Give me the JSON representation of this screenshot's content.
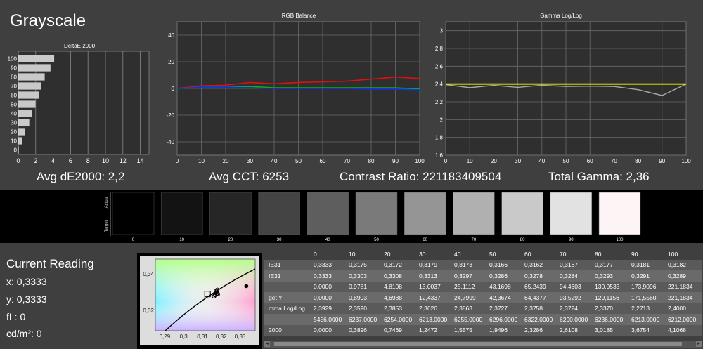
{
  "page_title": "Grayscale",
  "stats": {
    "avg_de": "Avg dE2000: 2,2",
    "avg_cct": "Avg CCT: 6253",
    "contrast": "Contrast Ratio: 221183409504",
    "gamma": "Total Gamma: 2,36"
  },
  "reading": {
    "title": "Current Reading",
    "x": "x: 0,3333",
    "y": "y: 0,3333",
    "fl": "fL: 0",
    "cdm2": "cd/m²: 0"
  },
  "swatch_labels": {
    "actual": "Actual",
    "target": "Target"
  },
  "swatches": [
    {
      "label": "0",
      "color": "#000000"
    },
    {
      "label": "10",
      "color": "#131313"
    },
    {
      "label": "20",
      "color": "#262626"
    },
    {
      "label": "30",
      "color": "#444444"
    },
    {
      "label": "40",
      "color": "#5e5e5e"
    },
    {
      "label": "50",
      "color": "#7a7a7a"
    },
    {
      "label": "60",
      "color": "#959595"
    },
    {
      "label": "70",
      "color": "#b0b0b0"
    },
    {
      "label": "80",
      "color": "#c9c9c9"
    },
    {
      "label": "90",
      "color": "#e2e2e2"
    },
    {
      "label": "100",
      "color": "#fdf5f5"
    }
  ],
  "table": {
    "header": [
      "",
      "0",
      "10",
      "20",
      "30",
      "40",
      "50",
      "60",
      "70",
      "80",
      "90",
      "100"
    ],
    "rows": [
      [
        "IE31",
        "0,3333",
        "0,3175",
        "0,3172",
        "0,3179",
        "0,3173",
        "0,3166",
        "0,3162",
        "0,3167",
        "0,3177",
        "0,3181",
        "0,3182"
      ],
      [
        "IE31",
        "0,3333",
        "0,3303",
        "0,3308",
        "0,3313",
        "0,3297",
        "0,3286",
        "0,3278",
        "0,3284",
        "0,3293",
        "0,3291",
        "0,3289"
      ],
      [
        "",
        "0,0000",
        "0,9781",
        "4,8108",
        "13,0037",
        "25,1112",
        "43,1698",
        "65,2439",
        "94,4603",
        "130,9533",
        "173,9096",
        "221,1834"
      ],
      [
        "get Y",
        "0,0000",
        "0,8903",
        "4,6988",
        "12,4337",
        "24,7999",
        "42,3674",
        "64,4377",
        "93,5292",
        "129,1156",
        "171,5560",
        "221,1834"
      ],
      [
        "mma Log/Log",
        "2,3929",
        "2,3590",
        "2,3853",
        "2,3626",
        "2,3863",
        "2,3727",
        "2,3758",
        "2,3724",
        "2,3370",
        "2,2713",
        "2,4000"
      ],
      [
        "",
        "5456,0000",
        "6237,0000",
        "6254,0000",
        "6213,0000",
        "6255,0000",
        "6296,0000",
        "6322,0000",
        "6290,0000",
        "6236,0000",
        "6213,0000",
        "6212,0000"
      ],
      [
        "2000",
        "0,0000",
        "0,3896",
        "0,7469",
        "1,2472",
        "1,5575",
        "1,9496",
        "2,3286",
        "2,6108",
        "3,0185",
        "3,6754",
        "4,1068"
      ]
    ]
  },
  "chart_data": [
    {
      "type": "bar",
      "title": "DeltaE 2000",
      "categories": [
        "0",
        "10",
        "20",
        "30",
        "40",
        "50",
        "60",
        "70",
        "80",
        "90",
        "100"
      ],
      "values": [
        0.0,
        0.3896,
        0.7469,
        1.2472,
        1.5575,
        1.9496,
        2.3286,
        2.6108,
        3.0185,
        3.6754,
        4.1068
      ],
      "xlim": [
        0,
        15
      ],
      "xticks": [
        "0",
        "2",
        "4",
        "6",
        "8",
        "10",
        "12",
        "14"
      ],
      "orientation": "horizontal"
    },
    {
      "type": "line",
      "title": "RGB Balance",
      "x": [
        0,
        10,
        20,
        30,
        40,
        50,
        60,
        70,
        80,
        90,
        100
      ],
      "xticks": [
        "0",
        "10",
        "20",
        "30",
        "40",
        "50",
        "60",
        "70",
        "80",
        "90",
        "100"
      ],
      "yticks": [
        "40",
        "20",
        "0",
        "-20",
        "-40"
      ],
      "ylim": [
        -50,
        50
      ],
      "series": [
        {
          "color": "#e01010",
          "values": [
            0,
            2,
            2.5,
            4.5,
            3.5,
            4.5,
            5,
            5.5,
            7,
            8.5,
            7.5
          ]
        },
        {
          "color": "#10b010",
          "values": [
            0,
            1,
            1,
            1.5,
            0.5,
            0.5,
            0.5,
            0.5,
            0.5,
            0.5,
            -0.5
          ]
        },
        {
          "color": "#1030e0",
          "values": [
            0,
            1,
            1,
            0.5,
            0,
            0,
            0,
            0,
            -0.5,
            -0.5,
            -1
          ]
        }
      ]
    },
    {
      "type": "line",
      "title": "Gamma Log/Log",
      "x": [
        0,
        10,
        20,
        30,
        40,
        50,
        60,
        70,
        80,
        90,
        100
      ],
      "xticks": [
        "0",
        "10",
        "20",
        "30",
        "40",
        "50",
        "60",
        "70",
        "80",
        "90",
        "100"
      ],
      "yticks": [
        "3",
        "2,8",
        "2,6",
        "2,4",
        "2,2",
        "2",
        "1,8",
        "1,6"
      ],
      "ylim": [
        1.6,
        3.1
      ],
      "series": [
        {
          "color": "#a8a8a8",
          "values": [
            2.3929,
            2.359,
            2.3853,
            2.3626,
            2.3863,
            2.3727,
            2.3758,
            2.3724,
            2.337,
            2.2713,
            2.4
          ]
        },
        {
          "color": "#f0f000",
          "values": [
            2.4,
            2.4,
            2.4,
            2.4,
            2.4,
            2.4,
            2.4,
            2.4,
            2.4,
            2.4,
            2.4
          ]
        }
      ]
    },
    {
      "type": "scatter",
      "xticks": [
        "0,29",
        "0,3",
        "0,31",
        "0,32",
        "0,33"
      ],
      "yticks": [
        "0,34",
        "0,32"
      ],
      "xlim": [
        0.285,
        0.338
      ],
      "ylim": [
        0.309,
        0.348
      ],
      "target": {
        "x": 0.3127,
        "y": 0.329
      },
      "measured": [
        {
          "x": 0.3175,
          "y": 0.3303
        },
        {
          "x": 0.3172,
          "y": 0.3308
        },
        {
          "x": 0.3179,
          "y": 0.3313
        },
        {
          "x": 0.3173,
          "y": 0.3297
        },
        {
          "x": 0.3166,
          "y": 0.3286
        },
        {
          "x": 0.3162,
          "y": 0.3278
        },
        {
          "x": 0.3167,
          "y": 0.3284
        },
        {
          "x": 0.3177,
          "y": 0.3293
        },
        {
          "x": 0.3181,
          "y": 0.3291
        },
        {
          "x": 0.3182,
          "y": 0.3289
        }
      ],
      "current": {
        "x": 0.3333,
        "y": 0.3333
      }
    }
  ]
}
